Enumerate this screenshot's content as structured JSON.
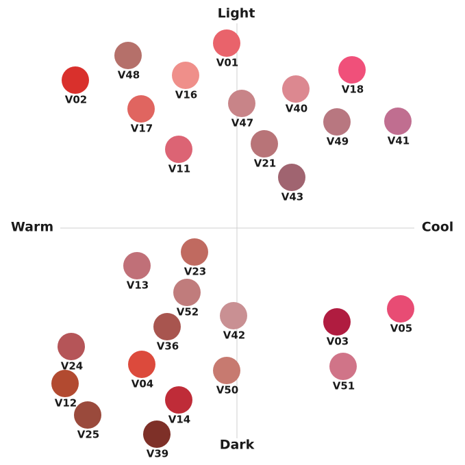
{
  "axes": {
    "top": "Light",
    "bottom": "Dark",
    "left": "Warm",
    "right": "Cool"
  },
  "swatches": [
    {
      "label": "V01",
      "color": "#e9636b"
    },
    {
      "label": "V48",
      "color": "#b5706a"
    },
    {
      "label": "V02",
      "color": "#d9302c"
    },
    {
      "label": "V16",
      "color": "#ef8f8a"
    },
    {
      "label": "V17",
      "color": "#e06560"
    },
    {
      "label": "V47",
      "color": "#c88488"
    },
    {
      "label": "V40",
      "color": "#dc8890"
    },
    {
      "label": "V18",
      "color": "#f0507a"
    },
    {
      "label": "V49",
      "color": "#b87780"
    },
    {
      "label": "V41",
      "color": "#c06e90"
    },
    {
      "label": "V11",
      "color": "#dc6474"
    },
    {
      "label": "V21",
      "color": "#b87478"
    },
    {
      "label": "V43",
      "color": "#a06470"
    },
    {
      "label": "V23",
      "color": "#c06a60"
    },
    {
      "label": "V13",
      "color": "#c07078"
    },
    {
      "label": "V52",
      "color": "#c07c7c"
    },
    {
      "label": "V42",
      "color": "#c99093"
    },
    {
      "label": "V36",
      "color": "#a8554f"
    },
    {
      "label": "V03",
      "color": "#b01c40"
    },
    {
      "label": "V05",
      "color": "#e84c74"
    },
    {
      "label": "V24",
      "color": "#b55558"
    },
    {
      "label": "V04",
      "color": "#dc4a3c"
    },
    {
      "label": "V50",
      "color": "#c77a70"
    },
    {
      "label": "V51",
      "color": "#d07488"
    },
    {
      "label": "V12",
      "color": "#b24a30"
    },
    {
      "label": "V14",
      "color": "#bf2c38"
    },
    {
      "label": "V25",
      "color": "#9a4a3c"
    },
    {
      "label": "V39",
      "color": "#7e3028"
    }
  ]
}
